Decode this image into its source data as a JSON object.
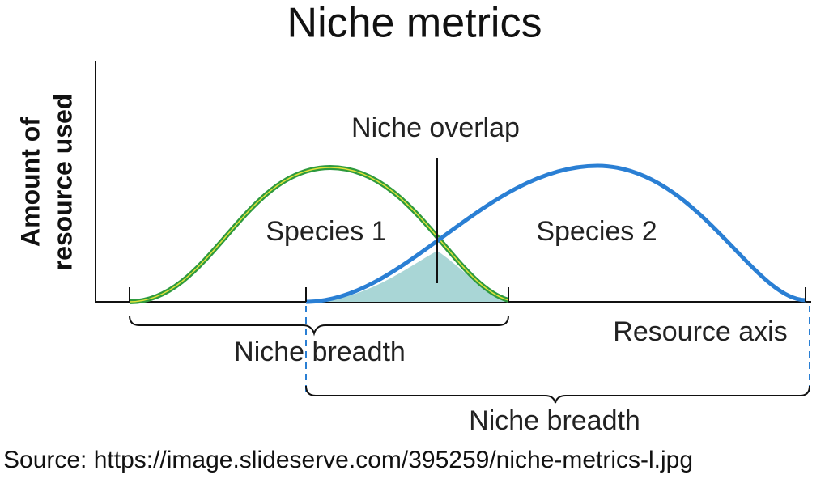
{
  "title": "Niche metrics",
  "y_axis_label": [
    "Amount of",
    "resource used"
  ],
  "labels": {
    "overlap": "Niche overlap",
    "species_1": "Species 1",
    "species_2": "Species 2",
    "resource_axis": "Resource axis",
    "breadth_1": "Niche breadth",
    "breadth_2": "Niche breadth"
  },
  "source": "Source: https://image.slideserve.com/395259/niche-metrics-l.jpg"
}
